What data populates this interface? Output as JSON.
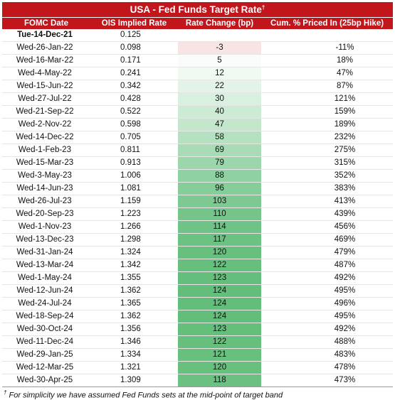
{
  "title": "USA - Fed Funds Target Rate",
  "title_mark": "†",
  "headers": {
    "date": "FOMC Date",
    "ois": "OIS Implied Rate",
    "change": "Rate Change (bp)",
    "cum": "Cum. % Priced In (25bp Hike)"
  },
  "rows": [
    {
      "date": "Tue-14-Dec-21",
      "ois": "0.125",
      "change": "",
      "cum": "",
      "base": true
    },
    {
      "date": "Wed-26-Jan-22",
      "ois": "0.098",
      "change": "-3",
      "cum": "-11%"
    },
    {
      "date": "Wed-16-Mar-22",
      "ois": "0.171",
      "change": "5",
      "cum": "18%"
    },
    {
      "date": "Wed-4-May-22",
      "ois": "0.241",
      "change": "12",
      "cum": "47%"
    },
    {
      "date": "Wed-15-Jun-22",
      "ois": "0.342",
      "change": "22",
      "cum": "87%"
    },
    {
      "date": "Wed-27-Jul-22",
      "ois": "0.428",
      "change": "30",
      "cum": "121%"
    },
    {
      "date": "Wed-21-Sep-22",
      "ois": "0.522",
      "change": "40",
      "cum": "159%"
    },
    {
      "date": "Wed-2-Nov-22",
      "ois": "0.598",
      "change": "47",
      "cum": "189%"
    },
    {
      "date": "Wed-14-Dec-22",
      "ois": "0.705",
      "change": "58",
      "cum": "232%"
    },
    {
      "date": "Wed-1-Feb-23",
      "ois": "0.811",
      "change": "69",
      "cum": "275%"
    },
    {
      "date": "Wed-15-Mar-23",
      "ois": "0.913",
      "change": "79",
      "cum": "315%"
    },
    {
      "date": "Wed-3-May-23",
      "ois": "1.006",
      "change": "88",
      "cum": "352%"
    },
    {
      "date": "Wed-14-Jun-23",
      "ois": "1.081",
      "change": "96",
      "cum": "383%"
    },
    {
      "date": "Wed-26-Jul-23",
      "ois": "1.159",
      "change": "103",
      "cum": "413%"
    },
    {
      "date": "Wed-20-Sep-23",
      "ois": "1.223",
      "change": "110",
      "cum": "439%"
    },
    {
      "date": "Wed-1-Nov-23",
      "ois": "1.266",
      "change": "114",
      "cum": "456%"
    },
    {
      "date": "Wed-13-Dec-23",
      "ois": "1.298",
      "change": "117",
      "cum": "469%"
    },
    {
      "date": "Wed-31-Jan-24",
      "ois": "1.324",
      "change": "120",
      "cum": "479%"
    },
    {
      "date": "Wed-13-Mar-24",
      "ois": "1.342",
      "change": "122",
      "cum": "487%"
    },
    {
      "date": "Wed-1-May-24",
      "ois": "1.355",
      "change": "123",
      "cum": "492%"
    },
    {
      "date": "Wed-12-Jun-24",
      "ois": "1.362",
      "change": "124",
      "cum": "495%"
    },
    {
      "date": "Wed-24-Jul-24",
      "ois": "1.365",
      "change": "124",
      "cum": "496%"
    },
    {
      "date": "Wed-18-Sep-24",
      "ois": "1.362",
      "change": "124",
      "cum": "495%"
    },
    {
      "date": "Wed-30-Oct-24",
      "ois": "1.356",
      "change": "123",
      "cum": "492%"
    },
    {
      "date": "Wed-11-Dec-24",
      "ois": "1.346",
      "change": "122",
      "cum": "488%"
    },
    {
      "date": "Wed-29-Jan-25",
      "ois": "1.334",
      "change": "121",
      "cum": "483%"
    },
    {
      "date": "Wed-12-Mar-25",
      "ois": "1.321",
      "change": "120",
      "cum": "478%"
    },
    {
      "date": "Wed-30-Apr-25",
      "ois": "1.309",
      "change": "118",
      "cum": "473%"
    }
  ],
  "colors": {
    "header_bg": "#c0161c",
    "header_text": "#ffffff",
    "scale_low": "#f8e3e5",
    "scale_mid": "#ffffff",
    "scale_high": "#63be7b"
  },
  "footnote_mark": "†",
  "footnote": "For simplicity we have assumed Fed Funds sets at the mid-point of target band"
}
